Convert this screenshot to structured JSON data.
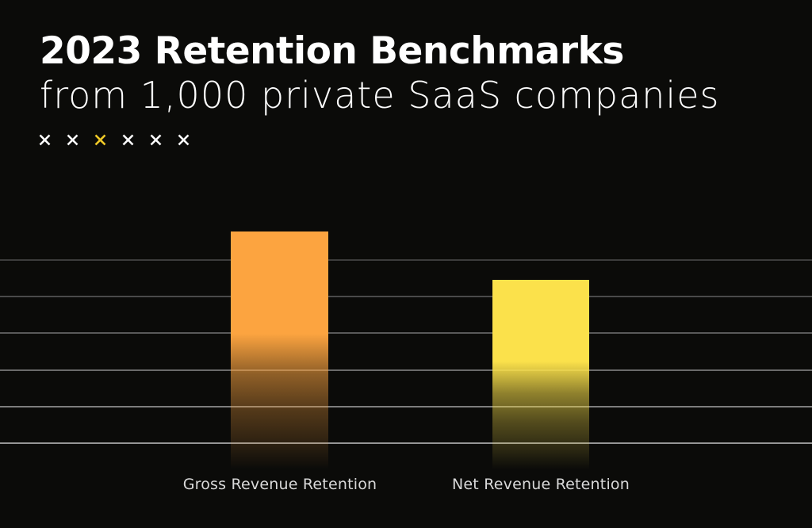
{
  "canvas": {
    "background_color": "#0b0b09"
  },
  "header": {
    "title": "2023 Retention Benchmarks",
    "subtitle": "from 1,000 private SaaS companies",
    "title_color": "#ffffff",
    "decoration_marks": {
      "count": 6,
      "highlight_index": 2,
      "default_color": "#ffffff",
      "highlight_color": "#efc927"
    }
  },
  "chart_data": {
    "type": "bar",
    "title": "2023 Retention Benchmarks",
    "subtitle": "from 1,000 private SaaS companies",
    "categories": [
      "Gross Revenue Retention",
      "Net Revenue Retention"
    ],
    "values": [
      5.76,
      4.44
    ],
    "value_unit": "gridline intervals above baseline (y-axis has no visible tick labels)",
    "ylim": [
      0,
      6.5
    ],
    "series_colors": [
      "#fca440",
      "#fbe14b"
    ],
    "bar_style": "solid color at top fading to transparent/black toward and just past the baseline",
    "xlabel": "",
    "ylabel": "",
    "legend": "none",
    "gridlines": {
      "count": 6,
      "orientation": "horizontal",
      "full_bleed": true,
      "colors_top_to_bottom": [
        "#3c3c3c",
        "#4a4a4a",
        "#595959",
        "#6a6a6a",
        "#7d7d7d",
        "#969696"
      ]
    },
    "label_color": "#d9d9d9",
    "background_color": "#0b0b09"
  }
}
